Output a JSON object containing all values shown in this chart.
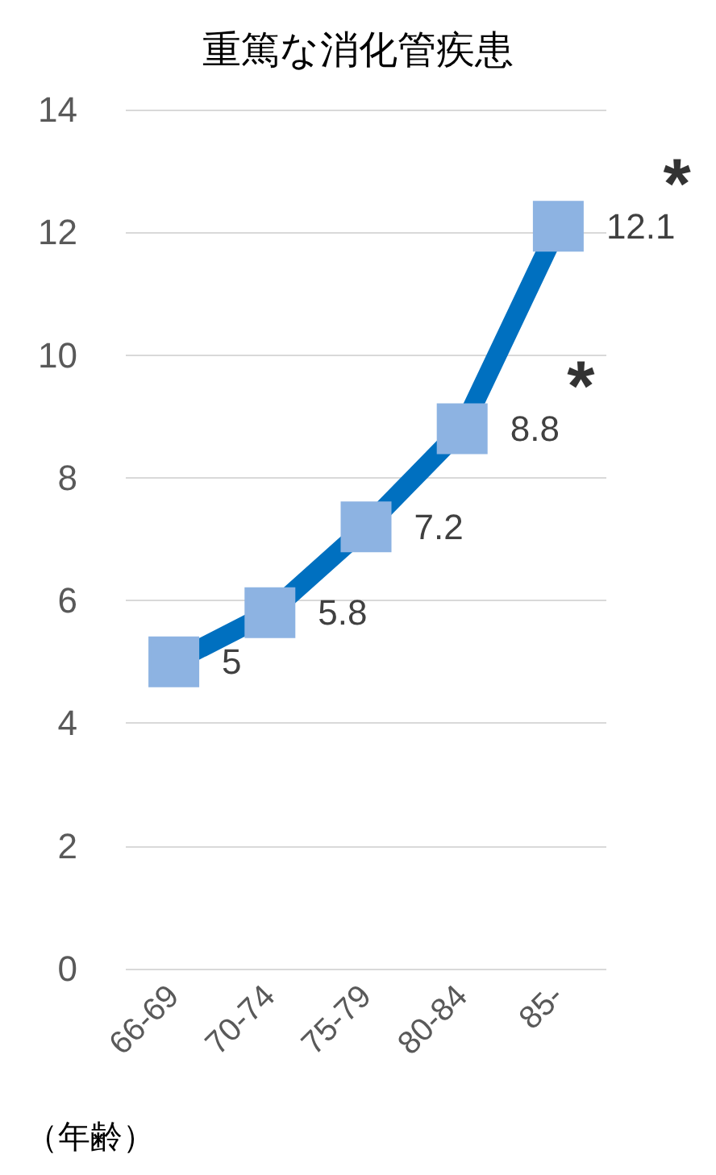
{
  "chart_data": {
    "type": "line",
    "title": "重篤な消化管疾患",
    "xlabel": "（年齢）",
    "categories": [
      "66-69",
      "70-74",
      "75-79",
      "80-84",
      "85-"
    ],
    "series": [
      {
        "color": "#0070c0",
        "colors": [
          "#8db3e2",
          "#8db3e2",
          "#8db3e2",
          "#8db3e2",
          "#8db3e2"
        ],
        "values": [
          5,
          5.8,
          7.2,
          8.8,
          12.1
        ]
      }
    ],
    "ylim": [
      0,
      14
    ],
    "yticks": [
      0,
      2,
      4,
      6,
      8,
      10,
      12,
      14
    ],
    "grid": "y",
    "marker": "square",
    "data_labels": true,
    "annotations": [
      {
        "text": "*",
        "x": "85-",
        "y": 12.1
      },
      {
        "text": "*",
        "x": "80-84",
        "y": 8.8
      }
    ]
  }
}
